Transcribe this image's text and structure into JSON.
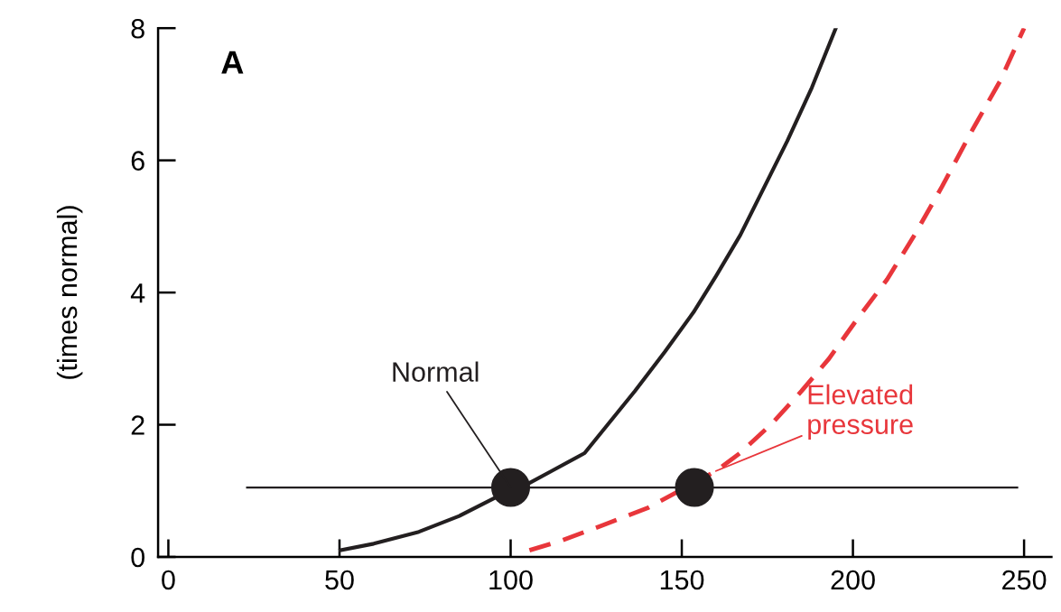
{
  "chart_data": {
    "type": "line",
    "ylabel": "(times normal)",
    "xlim": [
      -3,
      258
    ],
    "ylim": [
      0,
      8
    ],
    "xticks": [
      0,
      50,
      100,
      150,
      200,
      250
    ],
    "yticks": [
      0,
      2,
      4,
      6,
      8
    ],
    "grid": false,
    "series": [
      {
        "color": "#231f20",
        "x": [
          50.3,
          60,
          73.2,
          85,
          96,
          104.5,
          112,
          121.6,
          136.3,
          145,
          153.4,
          160,
          167.1,
          180.8,
          188,
          195
        ],
        "values": [
          0.1,
          0.2,
          0.38,
          0.62,
          0.91,
          1.09,
          1.3,
          1.57,
          2.51,
          3.1,
          3.7,
          4.25,
          4.87,
          6.29,
          7.1,
          8
        ],
        "line_style": "solid"
      },
      {
        "color": "#e8363b",
        "x": [
          105.5,
          115,
          127,
          140,
          160,
          167,
          176,
          185,
          193,
          201,
          210,
          218,
          226,
          235,
          243,
          250
        ],
        "values": [
          0.1,
          0.25,
          0.48,
          0.74,
          1.3,
          1.57,
          2.0,
          2.51,
          3.0,
          3.58,
          4.2,
          4.87,
          5.6,
          6.47,
          7.2,
          8
        ],
        "line_style": "dashed"
      },
      {
        "color": "#231f20",
        "x": [
          23,
          248
        ],
        "values": [
          1.05,
          1.05
        ],
        "line_style": "solid"
      },
      {
        "type": "scatter",
        "color": "#231f20",
        "x": [
          100,
          153.7
        ],
        "values": [
          1.05,
          1.05
        ],
        "marker": "circle"
      }
    ],
    "annotations": [
      "A",
      {
        "text": "Normal",
        "x": 100,
        "y": 1.05
      },
      {
        "text": "Elevated pressure",
        "x": 160,
        "y": 1.3
      }
    ]
  }
}
